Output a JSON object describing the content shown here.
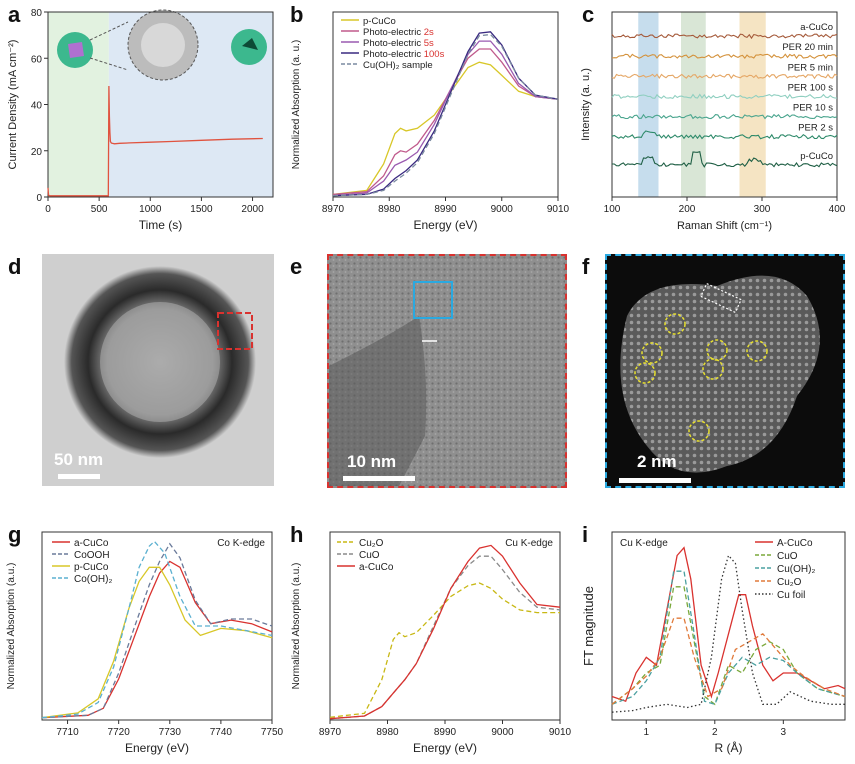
{
  "figure": {
    "letters": [
      "a",
      "b",
      "c",
      "d",
      "e",
      "f",
      "g",
      "h",
      "i"
    ],
    "colors": {
      "red": "#d9322f",
      "yellow": "#d8c728",
      "magenta": "#c04fa0",
      "purple": "#4a1f7a",
      "grey": "#7a8aa0",
      "navy": "#3a3a70",
      "teal": "#2e7a6a",
      "olive": "#c8b814",
      "dkgreen": "#1f5f45"
    }
  },
  "images": {
    "d": {
      "scale_label": "50 nm"
    },
    "e": {
      "scale_label": "10 nm"
    },
    "f": {
      "scale_label": "2 nm"
    }
  },
  "chart_data": [
    {
      "id": "a",
      "type": "line",
      "xlabel": "Time (s)",
      "ylabel": "Current Density (mA cm⁻²)",
      "xlim": [
        0,
        2200
      ],
      "ylim": [
        0,
        80
      ],
      "xticks": [
        0,
        500,
        1000,
        1500,
        2000
      ],
      "yticks": [
        0,
        20,
        40,
        60,
        80
      ],
      "series": [
        {
          "name": "current",
          "color": "#e0533f",
          "x": [
            0,
            5,
            10,
            20,
            100,
            300,
            590,
            595,
            600,
            605,
            610,
            620,
            650,
            700,
            800,
            1000,
            1200,
            1500,
            1800,
            2100
          ],
          "y": [
            4,
            1,
            0.6,
            0.5,
            0.5,
            0.5,
            0.5,
            48,
            35,
            28,
            24,
            23.3,
            23,
            23.2,
            23.4,
            23.7,
            24,
            24.5,
            25,
            25.3
          ]
        }
      ]
    },
    {
      "id": "b",
      "type": "line",
      "xlabel": "Energy (eV)",
      "ylabel": "Normalized Absorption (a. u.)",
      "xlim": [
        8970,
        9010
      ],
      "ylim": [
        0,
        1.4
      ],
      "xticks": [
        8970,
        8980,
        8990,
        9000,
        9010
      ],
      "legend": [
        {
          "label": "p-CuCo",
          "suffix": "",
          "color": "#d8c728",
          "dash": false
        },
        {
          "label": "Photo-electric ",
          "suffix": "2s",
          "color": "#c05a8c",
          "dash": false
        },
        {
          "label": "Photo-electric ",
          "suffix": "5s",
          "color": "#9a5ab0",
          "dash": false
        },
        {
          "label": "Photo-electric ",
          "suffix": "100s",
          "color": "#3a2a80",
          "dash": false
        },
        {
          "label": "Cu(OH)₂ sample",
          "suffix": "",
          "color": "#7a8aa0",
          "dash": true
        }
      ],
      "series": [
        {
          "name": "p-CuCo",
          "color": "#d8c728",
          "x": [
            8970,
            8976,
            8979,
            8981,
            8982,
            8983,
            8985,
            8988,
            8991,
            8994,
            8996,
            8998,
            9000,
            9003,
            9006,
            9010
          ],
          "y": [
            0.02,
            0.05,
            0.25,
            0.48,
            0.52,
            0.5,
            0.52,
            0.62,
            0.8,
            0.98,
            1.02,
            1.0,
            0.92,
            0.8,
            0.76,
            0.74
          ]
        },
        {
          "name": "Photo-electric 2s",
          "color": "#c05a8c",
          "x": [
            8970,
            8976,
            8979,
            8981,
            8982,
            8983,
            8985,
            8988,
            8991,
            8994,
            8996,
            8998,
            9000,
            9003,
            9006,
            9010
          ],
          "y": [
            0.02,
            0.04,
            0.16,
            0.32,
            0.35,
            0.34,
            0.4,
            0.58,
            0.82,
            1.05,
            1.12,
            1.12,
            1.02,
            0.84,
            0.76,
            0.74
          ]
        },
        {
          "name": "Photo-electric 5s",
          "color": "#9a5ab0",
          "x": [
            8970,
            8976,
            8979,
            8981,
            8983,
            8985,
            8988,
            8991,
            8994,
            8996,
            8998,
            9000,
            9003,
            9006,
            9010
          ],
          "y": [
            0.01,
            0.03,
            0.12,
            0.24,
            0.28,
            0.34,
            0.55,
            0.82,
            1.08,
            1.18,
            1.18,
            1.08,
            0.86,
            0.76,
            0.74
          ]
        },
        {
          "name": "Photo-electric 100s",
          "color": "#3a2a80",
          "x": [
            8970,
            8976,
            8979,
            8981,
            8983,
            8985,
            8988,
            8991,
            8994,
            8996,
            8998,
            9000,
            9003,
            9006,
            9010
          ],
          "y": [
            0.01,
            0.02,
            0.06,
            0.14,
            0.2,
            0.28,
            0.5,
            0.8,
            1.1,
            1.24,
            1.25,
            1.15,
            0.9,
            0.77,
            0.74
          ]
        },
        {
          "name": "Cu(OH)2 sample",
          "color": "#7a8aa0",
          "dash": true,
          "x": [
            8970,
            8976,
            8979,
            8981,
            8983,
            8985,
            8988,
            8991,
            8994,
            8996,
            8998,
            9000,
            9003,
            9006,
            9010
          ],
          "y": [
            0.01,
            0.02,
            0.05,
            0.12,
            0.18,
            0.26,
            0.48,
            0.78,
            1.08,
            1.22,
            1.23,
            1.14,
            0.9,
            0.77,
            0.74
          ]
        }
      ]
    },
    {
      "id": "c",
      "type": "line",
      "xlabel": "Raman Shift (cm⁻¹)",
      "ylabel": "Intensity (a. u.)",
      "xlim": [
        100,
        400
      ],
      "xticks": [
        100,
        200,
        300,
        400
      ],
      "bands": [
        {
          "x0": 135,
          "x1": 162,
          "color": "#b8d4e8"
        },
        {
          "x0": 192,
          "x1": 225,
          "color": "#cfe0cc"
        },
        {
          "x0": 270,
          "x1": 305,
          "color": "#f2ddb4"
        }
      ],
      "traces": [
        {
          "label": "a-CuCo",
          "color": "#a55a3a",
          "offset": 8
        },
        {
          "label": "PER 20 min",
          "color": "#d4923c",
          "offset": 7
        },
        {
          "label": "PER 5 min",
          "color": "#e5a766",
          "offset": 6
        },
        {
          "label": "PER 100 s",
          "color": "#8fcfc0",
          "offset": 5
        },
        {
          "label": "PER 10 s",
          "color": "#4aa58e",
          "offset": 4
        },
        {
          "label": "PER 2 s",
          "color": "#2e8a6a",
          "offset": 3
        },
        {
          "label": "p-CuCo",
          "color": "#1f5f45",
          "offset": 1.6
        }
      ]
    },
    {
      "id": "g",
      "type": "line",
      "xlabel": "Energy (eV)",
      "ylabel": "Normalized Absorption (a.u.)",
      "annotation": "Co K-edge",
      "xlim": [
        7705,
        7750
      ],
      "ylim": [
        0,
        1.6
      ],
      "xticks": [
        7710,
        7720,
        7730,
        7740,
        7750
      ],
      "legend": [
        {
          "label": "a-CuCo",
          "color": "#d9322f",
          "dash": false
        },
        {
          "label": "CoOOH",
          "color": "#6a7a9a",
          "dash": true
        },
        {
          "label": "p-CuCo",
          "color": "#d8c728",
          "dash": false
        },
        {
          "label": "Co(OH)₂",
          "color": "#5bb0d0",
          "dash": true
        }
      ],
      "series": [
        {
          "name": "a-CuCo",
          "color": "#d9322f",
          "x": [
            7705,
            7714,
            7717,
            7720,
            7723,
            7726,
            7728,
            7730,
            7732,
            7735,
            7738,
            7742,
            7746,
            7750
          ],
          "y": [
            0.02,
            0.04,
            0.1,
            0.35,
            0.7,
            1.05,
            1.25,
            1.35,
            1.3,
            1.0,
            0.82,
            0.85,
            0.82,
            0.75
          ]
        },
        {
          "name": "CoOOH",
          "color": "#6a7a9a",
          "dash": true,
          "x": [
            7705,
            7714,
            7717,
            7720,
            7723,
            7726,
            7728,
            7730,
            7732,
            7735,
            7738,
            7742,
            7746,
            7750
          ],
          "y": [
            0.02,
            0.04,
            0.1,
            0.4,
            0.78,
            1.15,
            1.35,
            1.5,
            1.38,
            1.02,
            0.82,
            0.86,
            0.86,
            0.8
          ]
        },
        {
          "name": "p-CuCo",
          "color": "#d8c728",
          "x": [
            7705,
            7712,
            7716,
            7719,
            7722,
            7724,
            7726,
            7728,
            7730,
            7733,
            7736,
            7740,
            7745,
            7750
          ],
          "y": [
            0.02,
            0.06,
            0.18,
            0.5,
            0.95,
            1.18,
            1.3,
            1.3,
            1.15,
            0.85,
            0.72,
            0.78,
            0.76,
            0.7
          ]
        },
        {
          "name": "Co(OH)2",
          "color": "#5bb0d0",
          "dash": true,
          "x": [
            7705,
            7712,
            7716,
            7719,
            7722,
            7724,
            7726,
            7727,
            7729,
            7732,
            7735,
            7740,
            7745,
            7750
          ],
          "y": [
            0.02,
            0.05,
            0.15,
            0.45,
            0.95,
            1.3,
            1.48,
            1.52,
            1.42,
            1.05,
            0.8,
            0.8,
            0.76,
            0.72
          ]
        }
      ]
    },
    {
      "id": "h",
      "type": "line",
      "xlabel": "Energy (eV)",
      "ylabel": "Normalized Absorption (a.u.)",
      "annotation": "Cu K-edge",
      "xlim": [
        8970,
        9010
      ],
      "ylim": [
        0,
        1.4
      ],
      "xticks": [
        8970,
        8980,
        8990,
        9000,
        9010
      ],
      "legend": [
        {
          "label": "Cu₂O",
          "color": "#c8b814",
          "dash": true
        },
        {
          "label": "CuO",
          "color": "#8a8a8a",
          "dash": true
        },
        {
          "label": "a-CuCo",
          "color": "#d9322f",
          "dash": false
        }
      ],
      "series": [
        {
          "name": "Cu2O",
          "color": "#c8b814",
          "dash": true,
          "x": [
            8970,
            8976,
            8979,
            8981,
            8982,
            8983,
            8985,
            8988,
            8991,
            8994,
            8996,
            8998,
            9000,
            9003,
            9006,
            9010
          ],
          "y": [
            0.02,
            0.05,
            0.3,
            0.6,
            0.65,
            0.62,
            0.65,
            0.78,
            0.92,
            1.0,
            1.02,
            0.98,
            0.9,
            0.82,
            0.8,
            0.8
          ]
        },
        {
          "name": "CuO",
          "color": "#8a8a8a",
          "dash": true,
          "x": [
            8970,
            8976,
            8979,
            8981,
            8983,
            8985,
            8988,
            8991,
            8994,
            8996,
            8998,
            9000,
            9003,
            9006,
            9010
          ],
          "y": [
            0.01,
            0.03,
            0.1,
            0.2,
            0.3,
            0.42,
            0.7,
            0.98,
            1.15,
            1.22,
            1.22,
            1.12,
            0.95,
            0.84,
            0.82
          ]
        },
        {
          "name": "a-CuCo",
          "color": "#d9322f",
          "x": [
            8970,
            8976,
            8979,
            8981,
            8983,
            8985,
            8988,
            8991,
            8994,
            8996,
            8998,
            9000,
            9003,
            9006,
            9010
          ],
          "y": [
            0.01,
            0.03,
            0.1,
            0.2,
            0.3,
            0.42,
            0.68,
            0.98,
            1.18,
            1.28,
            1.3,
            1.22,
            1.02,
            0.86,
            0.84
          ]
        }
      ]
    },
    {
      "id": "i",
      "type": "line",
      "xlabel": "R (Å)",
      "ylabel": "FT magnitude",
      "annotation": "Cu K-edge",
      "xlim": [
        0.5,
        3.9
      ],
      "ylim": [
        0,
        1.2
      ],
      "xticks": [
        1,
        2,
        3
      ],
      "legend": [
        {
          "label": "A-CuCo",
          "color": "#d9322f",
          "dash": false
        },
        {
          "label": "CuO",
          "color": "#7aa83a",
          "dash": true
        },
        {
          "label": "Cu(OH)₂",
          "color": "#4aa0a0",
          "dash": true
        },
        {
          "label": "Cu₂O",
          "color": "#e07a3a",
          "dash": true
        },
        {
          "label": "Cu foil",
          "color": "#333",
          "dash": "dot"
        }
      ],
      "series": [
        {
          "name": "A-CuCo",
          "color": "#d9322f",
          "x": [
            0.5,
            0.7,
            0.85,
            1.0,
            1.15,
            1.3,
            1.45,
            1.55,
            1.65,
            1.8,
            1.95,
            2.05,
            2.2,
            2.35,
            2.45,
            2.55,
            2.7,
            2.85,
            3.0,
            3.2,
            3.4,
            3.6,
            3.8,
            3.9
          ],
          "y": [
            0.15,
            0.12,
            0.3,
            0.4,
            0.35,
            0.7,
            1.05,
            1.1,
            0.9,
            0.35,
            0.15,
            0.3,
            0.55,
            0.8,
            0.8,
            0.6,
            0.35,
            0.25,
            0.3,
            0.3,
            0.25,
            0.2,
            0.22,
            0.2
          ]
        },
        {
          "name": "CuO",
          "color": "#7aa83a",
          "dash": true,
          "x": [
            0.5,
            0.8,
            1.0,
            1.2,
            1.4,
            1.55,
            1.7,
            1.85,
            2.0,
            2.2,
            2.4,
            2.6,
            2.8,
            3.0,
            3.2,
            3.5,
            3.9
          ],
          "y": [
            0.1,
            0.2,
            0.3,
            0.35,
            0.85,
            0.85,
            0.5,
            0.15,
            0.1,
            0.35,
            0.3,
            0.45,
            0.5,
            0.45,
            0.3,
            0.2,
            0.15
          ]
        },
        {
          "name": "Cu(OH)2",
          "color": "#4aa0a0",
          "dash": true,
          "x": [
            0.5,
            0.8,
            1.0,
            1.2,
            1.4,
            1.55,
            1.7,
            1.85,
            2.0,
            2.2,
            2.4,
            2.6,
            2.8,
            3.0,
            3.2,
            3.5,
            3.9
          ],
          "y": [
            0.1,
            0.15,
            0.25,
            0.4,
            0.95,
            0.95,
            0.55,
            0.12,
            0.1,
            0.3,
            0.4,
            0.35,
            0.4,
            0.38,
            0.3,
            0.2,
            0.15
          ]
        },
        {
          "name": "Cu2O",
          "color": "#e07a3a",
          "dash": true,
          "x": [
            0.5,
            0.8,
            1.0,
            1.2,
            1.4,
            1.55,
            1.7,
            1.9,
            2.1,
            2.3,
            2.5,
            2.7,
            2.9,
            3.1,
            3.3,
            3.6,
            3.9
          ],
          "y": [
            0.1,
            0.2,
            0.28,
            0.4,
            0.65,
            0.65,
            0.4,
            0.15,
            0.2,
            0.45,
            0.5,
            0.55,
            0.45,
            0.35,
            0.28,
            0.2,
            0.15
          ]
        },
        {
          "name": "Cu foil",
          "color": "#333",
          "dash": "dot",
          "x": [
            0.5,
            0.8,
            1.0,
            1.3,
            1.6,
            1.8,
            1.95,
            2.1,
            2.2,
            2.3,
            2.4,
            2.55,
            2.7,
            2.9,
            3.1,
            3.4,
            3.7,
            3.9
          ],
          "y": [
            0.05,
            0.06,
            0.08,
            0.1,
            0.08,
            0.1,
            0.4,
            0.9,
            1.05,
            1.0,
            0.7,
            0.3,
            0.1,
            0.1,
            0.18,
            0.12,
            0.1,
            0.1
          ]
        }
      ]
    }
  ]
}
